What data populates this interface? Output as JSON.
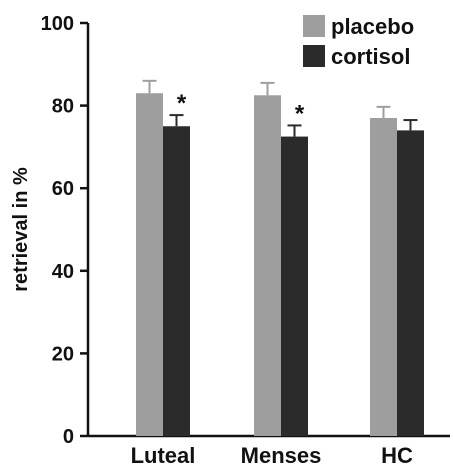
{
  "chart_data": {
    "type": "bar",
    "title": "",
    "xlabel": "",
    "ylabel": "retrieval in %",
    "ylim": [
      0,
      100
    ],
    "yticks": [
      0,
      20,
      40,
      60,
      80,
      100
    ],
    "ytick_labels": [
      "0",
      "20",
      "40",
      "60",
      "80",
      "100"
    ],
    "categories": [
      "Luteal",
      "Menses",
      "HC"
    ],
    "series": [
      {
        "name": "placebo",
        "color": "#9e9e9e",
        "values": [
          83,
          82.5,
          77
        ],
        "errors": [
          3,
          3,
          2.7
        ]
      },
      {
        "name": "cortisol",
        "color": "#2b2b2b",
        "values": [
          75,
          72.5,
          74
        ],
        "errors": [
          2.7,
          2.7,
          2.5
        ]
      }
    ],
    "annotations": [
      {
        "category": "Luteal",
        "series": "cortisol",
        "text": "*"
      },
      {
        "category": "Menses",
        "series": "cortisol",
        "text": "*"
      }
    ],
    "legend_position": "top-right",
    "grid": false
  }
}
